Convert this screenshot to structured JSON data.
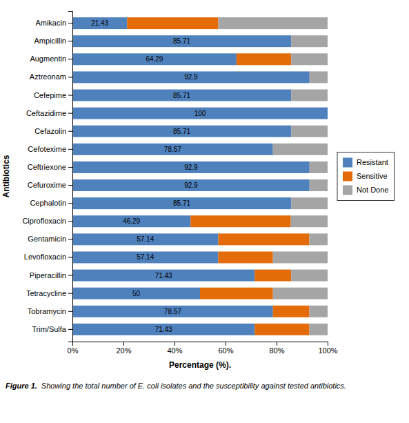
{
  "chart_data": {
    "type": "bar",
    "orientation": "horizontal",
    "stacked": true,
    "xlabel": "Percentage (%).",
    "ylabel": "Antibiotics",
    "categories": [
      "Amikacin",
      "Ampicillin",
      "Augmentin",
      "Aztreonam",
      "Cefepime",
      "Ceftazidime",
      "Cefazolin",
      "Cefotexime",
      "Ceftriexone",
      "Cefuroxime",
      "Cephalotin",
      "Ciprofloxacin",
      "Gentamicin",
      "Levofloxacin",
      "Piperacillin",
      "Tetracycline",
      "Tobramycin",
      "Trim/Sulfa"
    ],
    "series": [
      {
        "name": "Resistant",
        "color": "#4F81BD",
        "data_labels": true,
        "values": [
          21.43,
          85.71,
          64.29,
          92.9,
          85.71,
          100,
          85.71,
          78.57,
          92.9,
          92.9,
          85.71,
          46.29,
          57.14,
          57.14,
          71.43,
          50,
          78.57,
          71.43
        ]
      },
      {
        "name": "Sensitive",
        "color": "#E36C09",
        "values": [
          35.71,
          0,
          21.43,
          0,
          0,
          0,
          0,
          0,
          0,
          0,
          0,
          39.29,
          35.71,
          21.43,
          14.29,
          28.57,
          14.29,
          21.43
        ]
      },
      {
        "name": "Not Done",
        "color": "#A5A5A5",
        "values": [
          42.86,
          14.29,
          14.28,
          7.1,
          14.29,
          0,
          14.29,
          21.43,
          7.1,
          7.1,
          14.29,
          14.42,
          7.15,
          21.43,
          14.28,
          21.43,
          7.14,
          7.14
        ]
      }
    ],
    "xlim": [
      0,
      100
    ],
    "xticks": [
      {
        "value": 0,
        "label": "0%"
      },
      {
        "value": 20,
        "label": "20%"
      },
      {
        "value": 40,
        "label": "40%"
      },
      {
        "value": 60,
        "label": "60%"
      },
      {
        "value": 80,
        "label": "80%"
      },
      {
        "value": 100,
        "label": "100%"
      }
    ],
    "grid": false,
    "legend": "right",
    "annotations": [
      "Figure 1.",
      "Showing the total number of E. coli isolates and the susceptibility against tested antibiotics."
    ]
  }
}
